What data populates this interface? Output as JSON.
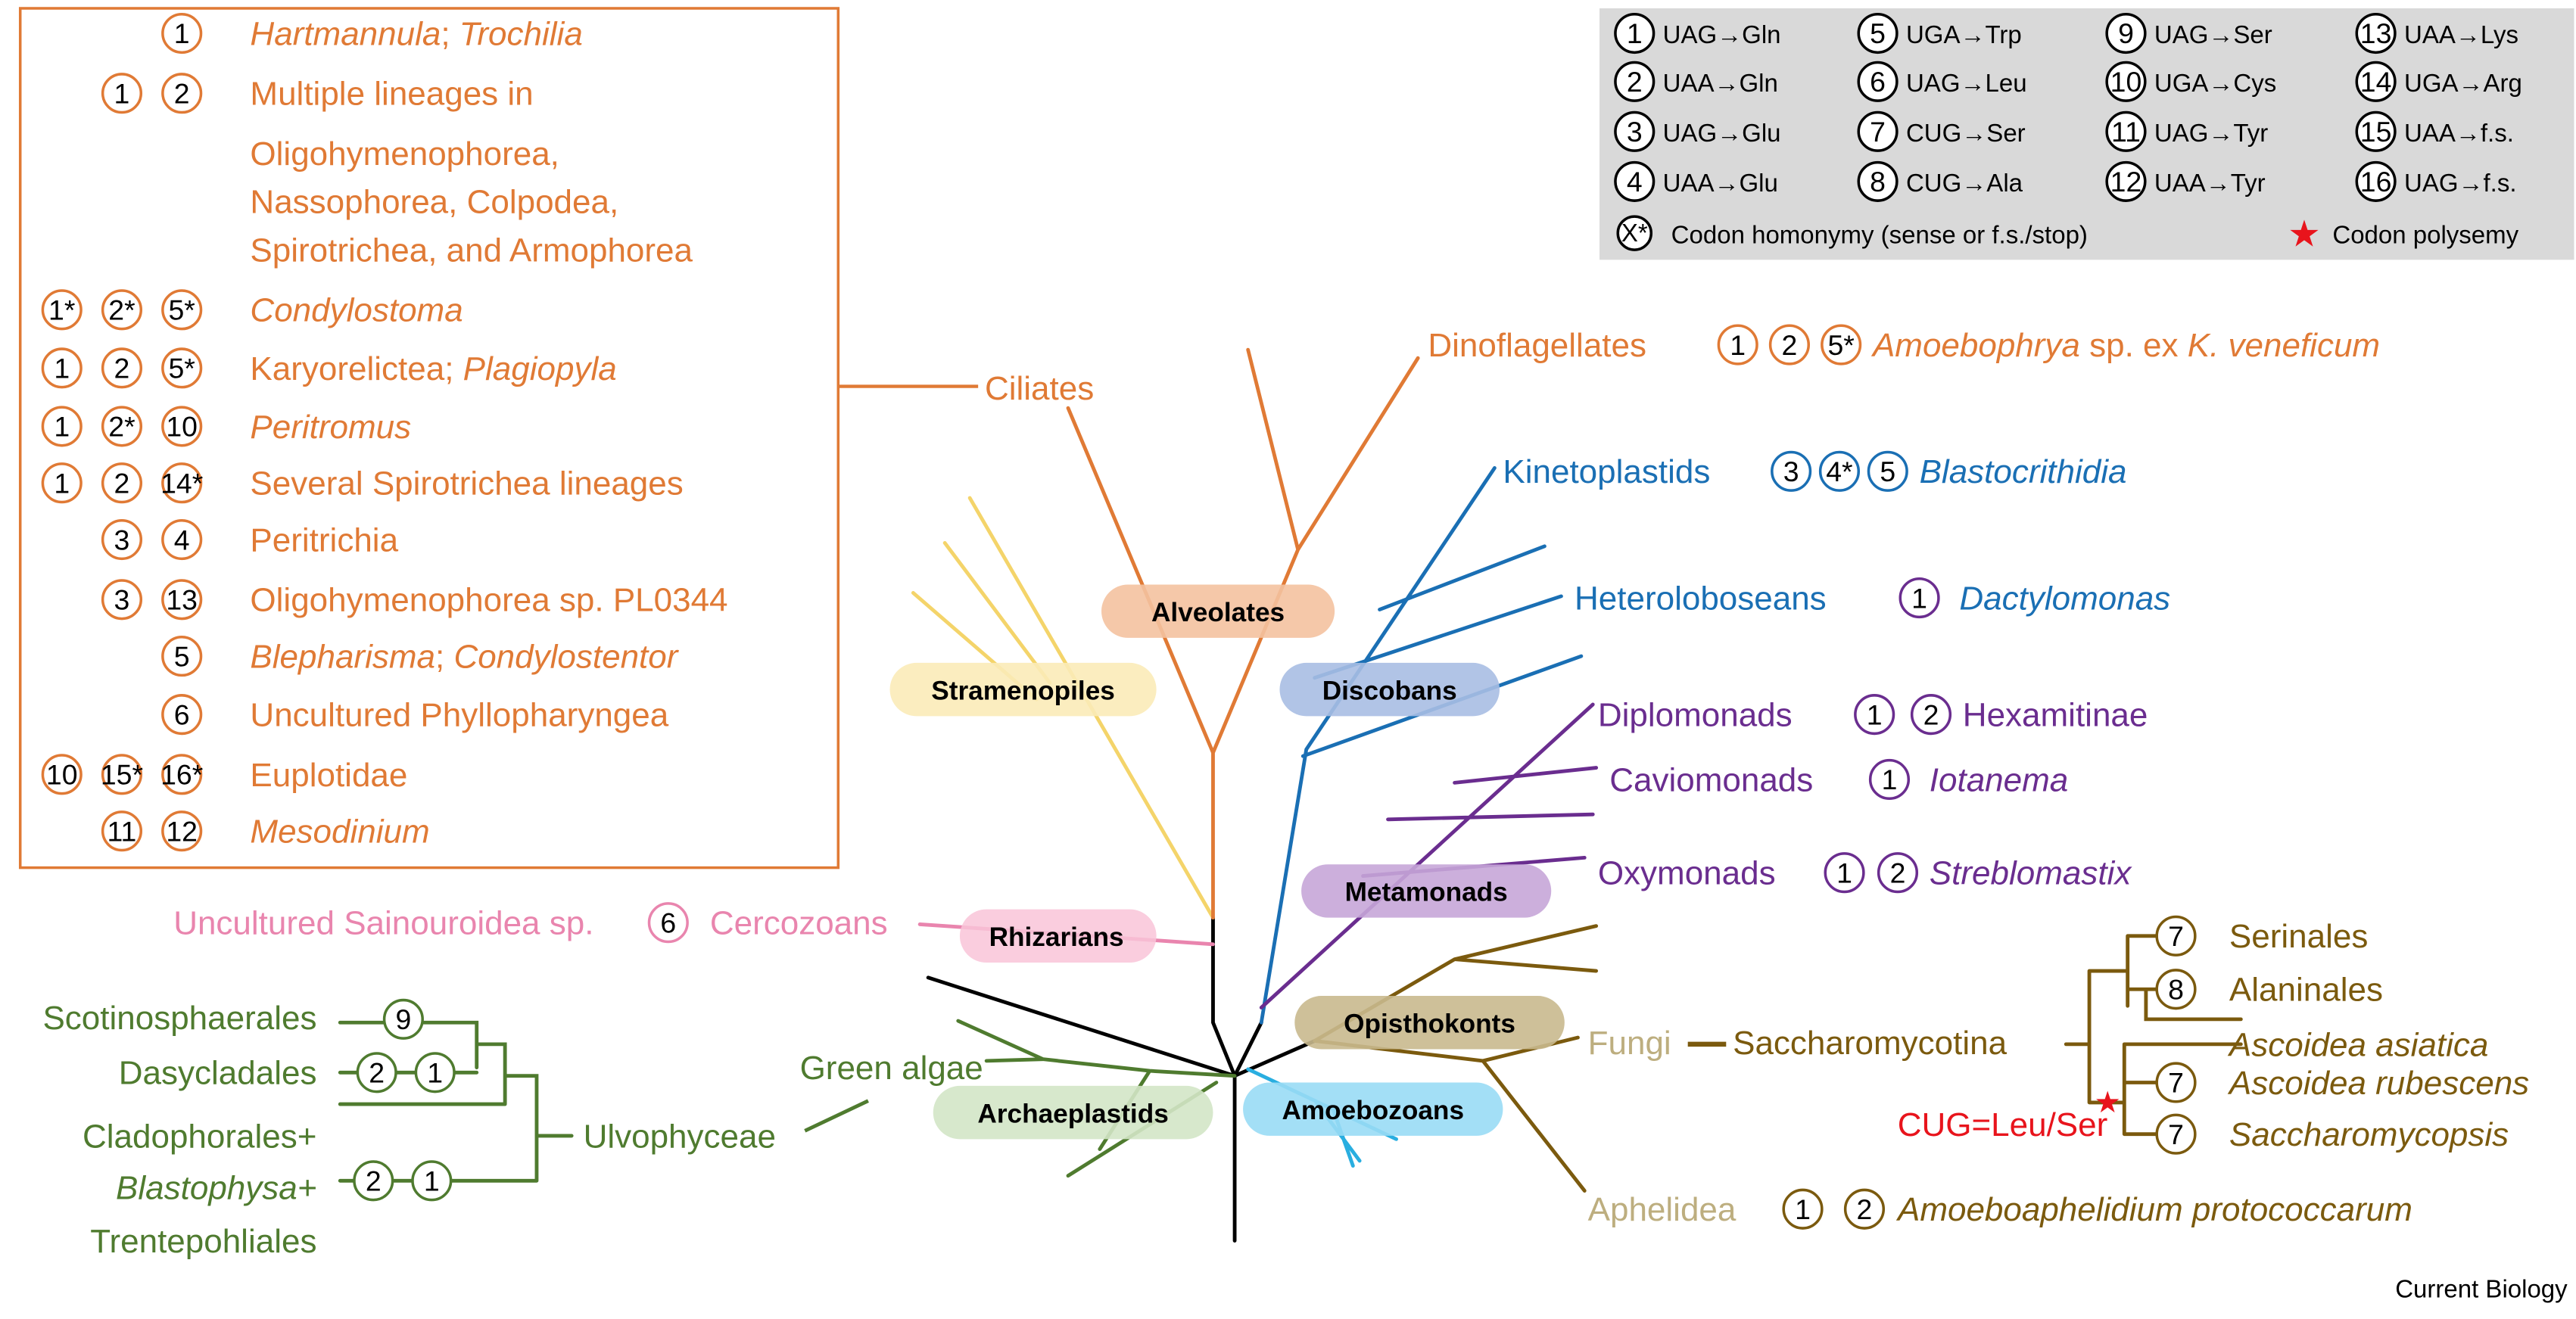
{
  "colors": {
    "alveolates": "#E07A35",
    "excavates_blue": "#1A6FB4",
    "metamonads": "#6A2D8F",
    "archaeplastids": "#4F7B2F",
    "opisthokonts": "#7B5A0E",
    "fungi_label": "#BDAE7F",
    "rhizarians": "#E985AE",
    "stramenopiles": "#F4D46A",
    "amoebozoans": "#29AEE0",
    "polysemy": "#E8141C",
    "legend_bg": "#D9D9D9"
  },
  "legend": {
    "items": [
      {
        "n": "1",
        "t": "UAG→Gln"
      },
      {
        "n": "2",
        "t": "UAA→Gln"
      },
      {
        "n": "3",
        "t": "UAG→Glu"
      },
      {
        "n": "4",
        "t": "UAA→Glu"
      },
      {
        "n": "5",
        "t": "UGA→Trp"
      },
      {
        "n": "6",
        "t": "UAG→Leu"
      },
      {
        "n": "7",
        "t": "CUG→Ser"
      },
      {
        "n": "8",
        "t": "CUG→Ala"
      },
      {
        "n": "9",
        "t": "UAG→Ser"
      },
      {
        "n": "10",
        "t": "UGA→Cys"
      },
      {
        "n": "11",
        "t": "UAG→Tyr"
      },
      {
        "n": "12",
        "t": "UAA→Tyr"
      },
      {
        "n": "13",
        "t": "UAA→Lys"
      },
      {
        "n": "14",
        "t": "UGA→Arg"
      },
      {
        "n": "15",
        "t": "UAA→f.s."
      },
      {
        "n": "16",
        "t": "UAG→f.s."
      }
    ],
    "homonymy_symbol": "X*",
    "homonymy_label": "Codon homonymy (sense or f.s./stop)",
    "polysemy_label": "Codon polysemy"
  },
  "groups": {
    "alveolates": "Alveolates",
    "stramenopiles": "Stramenopiles",
    "discobans": "Discobans",
    "metamonads": "Metamonads",
    "rhizarians": "Rhizarians",
    "opisthokonts": "Opisthokonts",
    "archaeplastids": "Archaeplastids",
    "amoebozoans": "Amoebozoans"
  },
  "ciliates": {
    "label": "Ciliates",
    "rows": [
      {
        "codes": [
          "",
          "",
          "1"
        ],
        "parts": [
          {
            "t": "Hartmannula",
            "i": true
          },
          {
            "t": "; "
          },
          {
            "t": "Trochilia",
            "i": true
          }
        ]
      },
      {
        "codes": [
          "",
          "1",
          "2"
        ],
        "parts": [
          {
            "t": "Multiple lineages in"
          }
        ]
      },
      {
        "codes": [],
        "parts": [
          {
            "t": "Oligohymenophorea,"
          }
        ]
      },
      {
        "codes": [],
        "parts": [
          {
            "t": "Nassophorea, Colpodea,"
          }
        ]
      },
      {
        "codes": [],
        "parts": [
          {
            "t": "Spirotrichea, and Armophorea"
          }
        ]
      },
      {
        "codes": [
          "1*",
          "2*",
          "5*"
        ],
        "parts": [
          {
            "t": "Condylostoma",
            "i": true
          }
        ]
      },
      {
        "codes": [
          "1",
          "2",
          "5*"
        ],
        "parts": [
          {
            "t": "Karyorelictea; "
          },
          {
            "t": "Plagiopyla",
            "i": true
          }
        ]
      },
      {
        "codes": [
          "1",
          "2*",
          "10"
        ],
        "parts": [
          {
            "t": "Peritromus",
            "i": true
          }
        ]
      },
      {
        "codes": [
          "1",
          "2",
          "14*"
        ],
        "parts": [
          {
            "t": "Several Spirotrichea lineages"
          }
        ]
      },
      {
        "codes": [
          "",
          "3",
          "4"
        ],
        "parts": [
          {
            "t": "Peritrichia"
          }
        ]
      },
      {
        "codes": [
          "",
          "3",
          "13"
        ],
        "parts": [
          {
            "t": "Oligohymenophorea sp. PL0344"
          }
        ]
      },
      {
        "codes": [
          "",
          "",
          "5"
        ],
        "parts": [
          {
            "t": "Blepharisma",
            "i": true
          },
          {
            "t": "; "
          },
          {
            "t": "Condylostentor",
            "i": true
          }
        ]
      },
      {
        "codes": [
          "",
          "",
          "6"
        ],
        "parts": [
          {
            "t": "Uncultured Phyllopharyngea"
          }
        ]
      },
      {
        "codes": [
          "10",
          "15*",
          "16*"
        ],
        "parts": [
          {
            "t": "Euplotidae"
          }
        ]
      },
      {
        "codes": [
          "",
          "11",
          "12"
        ],
        "parts": [
          {
            "t": "Mesodinium",
            "i": true
          }
        ]
      }
    ]
  },
  "clades": {
    "dinoflagellates": {
      "label": "Dinoflagellates",
      "codes": [
        "1",
        "2",
        "5*"
      ],
      "taxon_a": "Amoebophrya",
      "taxon_mid": " sp. ex ",
      "taxon_b": "K. veneficum"
    },
    "kinetoplastids": {
      "label": "Kinetoplastids",
      "codes": [
        "3",
        "4*",
        "5"
      ],
      "taxon": "Blastocrithidia"
    },
    "heterolobosean": {
      "label": "Heteroloboseans",
      "codes": [
        "1"
      ],
      "taxon": "Dactylomonas"
    },
    "diplomonads": {
      "label": "Diplomonads",
      "codes": [
        "1",
        "2"
      ],
      "taxon": "Hexamitinae"
    },
    "caviomonads": {
      "label": "Caviomonads",
      "codes": [
        "1"
      ],
      "taxon": "Iotanema"
    },
    "oxymonads": {
      "label": "Oxymonads",
      "codes": [
        "1",
        "2"
      ],
      "taxon": "Streblomastix"
    },
    "fungi": {
      "label": "Fungi",
      "sub": "Saccharomycotina"
    },
    "saccharomycotina": {
      "serinales": {
        "code": "7",
        "label": "Serinales"
      },
      "alaninales": {
        "code": "8",
        "label": "Alaninales"
      },
      "ascoidea_asiatica": {
        "label": "Ascoidea asiatica"
      },
      "ascoidea_rubescens": {
        "code": "7",
        "label": "Ascoidea rubescens"
      },
      "saccharomycopsis": {
        "code": "7",
        "label": "Saccharomycopsis"
      },
      "polysemy_note": "CUG=Leu/Ser"
    },
    "aphelidea": {
      "label": "Aphelidea",
      "codes": [
        "1",
        "2"
      ],
      "taxon": "Amoeboaphelidium protococcarum"
    },
    "cercozoans": {
      "prefix": "Uncultured Sainouroidea sp.",
      "code": "6",
      "label": "Cercozoans"
    },
    "green_algae": {
      "label": "Green algae",
      "ulvo": "Ulvophyceae",
      "scotinosphaerales": "Scotinosphaerales",
      "scot_code": "9",
      "dasycladales": "Dasycladales",
      "dasy_codes": [
        "2",
        "1"
      ],
      "cladophorales": "Cladophorales+",
      "blastophysa": "Blastophysa+",
      "trentepohliales": "Trentepohliales",
      "clado_codes": [
        "2",
        "1"
      ]
    }
  },
  "footer": {
    "journal": "Current Biology"
  }
}
